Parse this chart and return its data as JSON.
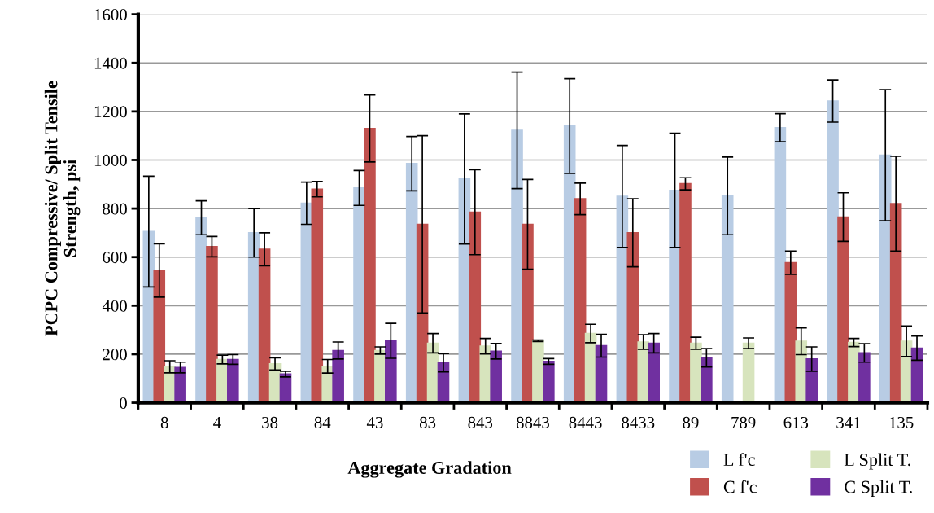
{
  "chart_data": {
    "type": "bar",
    "xlabel": "Aggregate Gradation",
    "ylabel": "PCPC Compressive/ Split Tensile\nStrength, psi",
    "categories": [
      "8",
      "4",
      "38",
      "84",
      "43",
      "83",
      "843",
      "8843",
      "8443",
      "8433",
      "89",
      "789",
      "613",
      "341",
      "135"
    ],
    "series": [
      {
        "name": "L f'c",
        "color": "#b8cce4",
        "values": [
          705,
          762,
          700,
          822,
          885,
          985,
          922,
          1122,
          1140,
          850,
          875,
          852,
          1133,
          1243,
          1020
        ],
        "errors": [
          228,
          70,
          100,
          87,
          72,
          112,
          268,
          240,
          195,
          210,
          235,
          160,
          58,
          87,
          270
        ]
      },
      {
        "name": "C f'c",
        "color": "#c0504d",
        "values": [
          545,
          643,
          632,
          880,
          1130,
          735,
          785,
          735,
          840,
          700,
          902,
          null,
          577,
          765,
          820
        ],
        "errors": [
          110,
          42,
          68,
          32,
          138,
          365,
          175,
          185,
          65,
          140,
          25,
          null,
          48,
          100,
          195
        ]
      },
      {
        "name": "L Split T.",
        "color": "#d7e4bd",
        "values": [
          148,
          178,
          160,
          150,
          215,
          245,
          233,
          255,
          285,
          250,
          245,
          245,
          253,
          248,
          253
        ],
        "errors": [
          25,
          18,
          25,
          28,
          15,
          40,
          32,
          3,
          38,
          30,
          25,
          22,
          55,
          17,
          63
        ]
      },
      {
        "name": "C Split T.",
        "color": "#7030a0",
        "values": [
          145,
          178,
          118,
          215,
          255,
          165,
          212,
          170,
          235,
          245,
          185,
          null,
          180,
          205,
          225
        ],
        "errors": [
          22,
          20,
          12,
          35,
          72,
          38,
          32,
          12,
          47,
          40,
          38,
          null,
          50,
          38,
          50
        ]
      }
    ],
    "ylim": [
      0,
      1600
    ],
    "yticks": [
      0,
      200,
      400,
      600,
      800,
      1000,
      1200,
      1400,
      1600
    ],
    "grid": "y",
    "legend": "bottom right"
  }
}
